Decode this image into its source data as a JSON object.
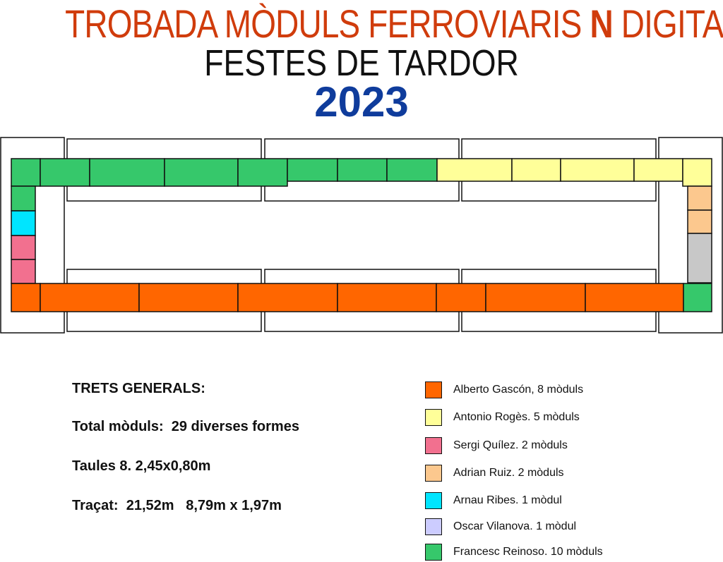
{
  "title": {
    "line1_pre": "TROBADA MÒDULS FERROVIARIS ",
    "line1_bold": "N",
    "line1_post": " DIGITAL",
    "line2": "FESTES DE TARDOR",
    "year": "2023"
  },
  "colors": {
    "orange": "#ff6600",
    "yellow": "#ffff99",
    "pink": "#f2708f",
    "peach": "#fcc88e",
    "cyan": "#00e5ff",
    "lavender": "#ccccff",
    "green": "#36c86b",
    "grey": "#c8c8c8",
    "title_red": "#d03c0c",
    "title_blue": "#0f3c9c"
  },
  "info": {
    "heading": "TRETS GENERALS:",
    "total": "Total mòduls:  29 diverses formes",
    "tables": "Taules 8. 2,45x0,80m",
    "track": "Traçat:  21,52m   8,79m x 1,97m"
  },
  "legend": [
    {
      "label": "Alberto Gascón, 8 mòduls",
      "color": "#ff6600"
    },
    {
      "label": "Antonio Rogès. 5 mòduls",
      "color": "#ffff99"
    },
    {
      "label": "Sergi Quílez.  2 mòduls",
      "color": "#f2708f"
    },
    {
      "label": "Adrian Ruiz. 2 mòduls",
      "color": "#fcc88e"
    },
    {
      "label": "Arnau Ribes. 1 mòdul",
      "color": "#00e5ff"
    },
    {
      "label": "Oscar Vilanova. 1 mòdul",
      "color": "#ccccff"
    },
    {
      "label": "Francesc Reinoso. 10 mòduls",
      "color": "#36c86b"
    }
  ]
}
